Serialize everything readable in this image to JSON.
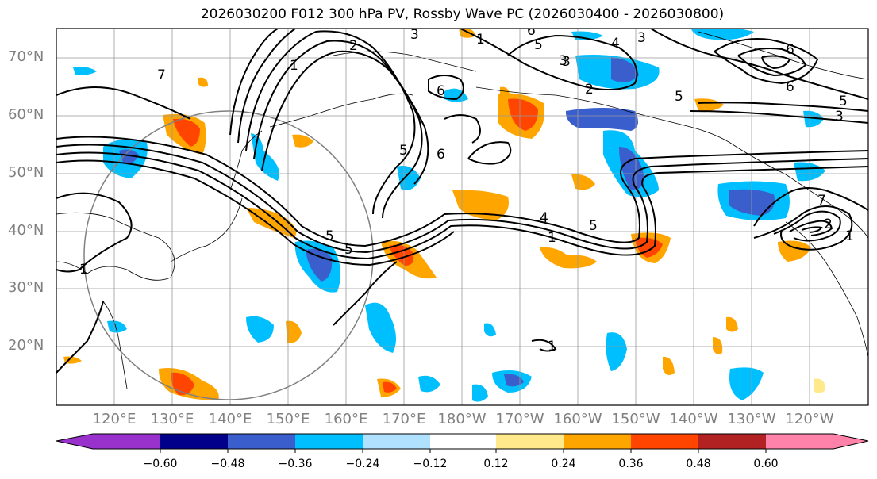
{
  "title": "2026030200 F012 300 hPa PV, Rossby Wave PC (2026030400 - 2026030800)",
  "lat_labels": [
    "70°N",
    "60°N",
    "50°N",
    "40°N",
    "30°N",
    "20°N"
  ],
  "lon_labels": [
    "120°E",
    "130°E",
    "140°E",
    "150°E",
    "160°E",
    "170°E",
    "180°W",
    "170°W",
    "160°W",
    "150°W",
    "140°W",
    "130°W",
    "120°W"
  ],
  "contour_labels": [
    "3",
    "2",
    "1",
    "3",
    "4",
    "3",
    "6",
    "5",
    "5",
    "3",
    "2",
    "6",
    "5",
    "7",
    "1",
    "5",
    "1",
    "4",
    "5",
    "1",
    "1",
    "6",
    "5",
    "6",
    "5",
    "3",
    "2",
    "1",
    "6",
    "7"
  ],
  "colorbar": {
    "ticks": [
      "−0.60",
      "−0.48",
      "−0.36",
      "−0.24",
      "−0.12",
      "0.12",
      "0.24",
      "0.36",
      "0.48",
      "0.60"
    ],
    "colors": [
      "#9932cc",
      "#00008b",
      "#3a5fcd",
      "#00bfff",
      "#b0e2ff",
      "#ffffff",
      "#ffe98a",
      "#ffa500",
      "#ff4500",
      "#b22222",
      "#ff82ab"
    ]
  }
}
